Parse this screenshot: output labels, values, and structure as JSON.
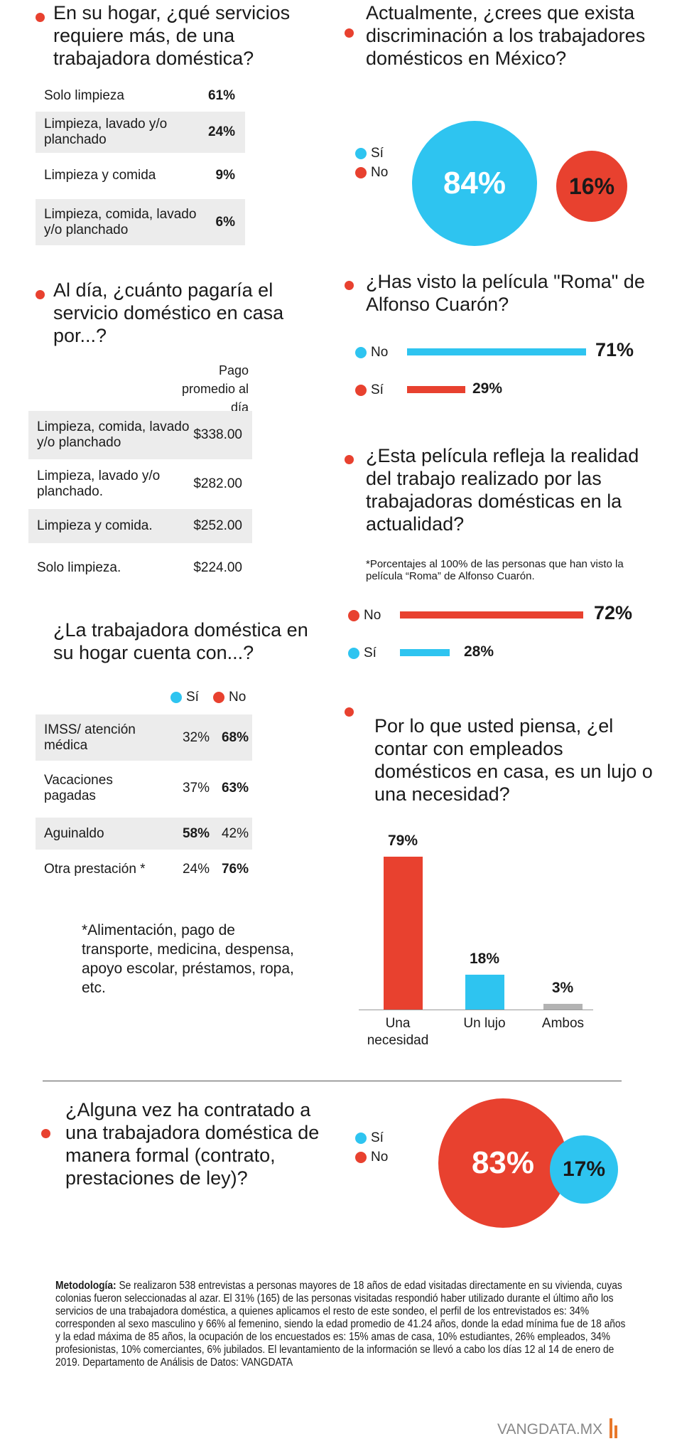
{
  "colors": {
    "red": "#e8412f",
    "blue": "#2ec4f0",
    "gray": "#b3b3b3",
    "row_gray": "#ececec"
  },
  "q1": {
    "title": "En su hogar, ¿qué servicios requiere más, de una trabajadora doméstica?",
    "rows": [
      {
        "label": "Solo limpieza",
        "value": "61%"
      },
      {
        "label": "Limpieza, lavado y/o planchado",
        "value": "24%"
      },
      {
        "label": "Limpieza y comida",
        "value": "9%"
      },
      {
        "label": "Limpieza, comida, lavado y/o planchado",
        "value": "6%"
      }
    ]
  },
  "q2": {
    "title": "Al día, ¿cuánto pagaría el servicio doméstico en casa por...?",
    "column_header": "Pago promedio al día",
    "rows": [
      {
        "label": "Limpieza, comida, lavado y/o planchado",
        "value": "$338.00"
      },
      {
        "label": "Limpieza, lavado y/o planchado.",
        "value": "$282.00"
      },
      {
        "label": "Limpieza y comida.",
        "value": "$252.00"
      },
      {
        "label": "Solo limpieza.",
        "value": "$224.00"
      }
    ]
  },
  "q3": {
    "title": "¿La trabajadora doméstica en su hogar cuenta con...?",
    "legend_si": "Sí",
    "legend_no": "No",
    "rows": [
      {
        "label": "IMSS/ atención médica",
        "si": "32%",
        "no": "68%"
      },
      {
        "label": "Vacaciones pagadas",
        "si": "37%",
        "no": "63%"
      },
      {
        "label": "Aguinaldo",
        "si": "58%",
        "no": "42%"
      },
      {
        "label": "Otra prestación *",
        "si": "24%",
        "no": "76%"
      }
    ],
    "footnote": "*Alimentación, pago de transporte, medicina, despensa, apoyo escolar, préstamos, ropa, etc."
  },
  "q4": {
    "title": "Actualmente, ¿crees que exista discriminación a los trabajadores domésticos en México?",
    "legend_si": "Sí",
    "legend_no": "No",
    "si": "84%",
    "no": "16%"
  },
  "q5": {
    "title": "¿Has visto la película \"Roma\" de Alfonso Cuarón?",
    "no_label": "No",
    "no": "71%",
    "si_label": "Sí",
    "si": "29%"
  },
  "q6": {
    "title": "¿Esta película refleja la realidad del trabajo realizado por las trabajadoras domésticas en la actualidad?",
    "note": "*Porcentajes al 100% de las personas que han visto la película “Roma” de Alfonso Cuarón.",
    "no_label": "No",
    "no": "72%",
    "si_label": "Sí",
    "si": "28%"
  },
  "q7": {
    "title": "Por lo que usted piensa, ¿el contar con empleados domésticos en casa, es un lujo o una necesidad?",
    "bars": [
      {
        "label": "Una necesidad",
        "value": "79%"
      },
      {
        "label": "Un lujo",
        "value": "18%"
      },
      {
        "label": "Ambos",
        "value": "3%"
      }
    ]
  },
  "q8": {
    "title": "¿Alguna vez ha contratado a una trabajadora doméstica de manera formal (contrato, prestaciones de ley)?",
    "legend_si": "Sí",
    "legend_no": "No",
    "no": "83%",
    "si": "17%"
  },
  "methodology": {
    "label": "Metodología:",
    "text": "Se realizaron 538 entrevistas a personas mayores de 18 años de edad visitadas directamente en su vivienda, cuyas colonias fueron seleccionadas al azar. El 31% (165) de las personas visitadas respondió haber utilizado durante el último año los servicios de una trabajadora doméstica, a quienes aplicamos el resto de este sondeo, el perfil de los entrevistados es: 34% corresponden al sexo masculino y 66% al femenino, siendo la edad promedio de 41.24 años, donde la edad mínima fue de 18 años y la edad máxima de 85 años, la ocupación de los encuestados es: 15% amas de casa, 10% estudiantes, 26% empleados, 34% profesionistas, 10% comerciantes, 6% jubilados. El levantamiento de la información se llevó a cabo los días 12 al 14 de enero de 2019. Departamento de Análisis de Datos: VANGDATA"
  },
  "logo": "VANGDATA.MX",
  "chart_data": [
    {
      "type": "pie",
      "title": "Actualmente, ¿crees que exista discriminación a los trabajadores domésticos en México?",
      "categories": [
        "Sí",
        "No"
      ],
      "values": [
        84,
        16
      ]
    },
    {
      "type": "bar",
      "orientation": "horizontal",
      "title": "¿Has visto la película \"Roma\" de Alfonso Cuarón?",
      "categories": [
        "No",
        "Sí"
      ],
      "values": [
        71,
        29
      ]
    },
    {
      "type": "bar",
      "orientation": "horizontal",
      "title": "¿Esta película refleja la realidad del trabajo realizado por las trabajadoras domésticas en la actualidad?",
      "categories": [
        "No",
        "Sí"
      ],
      "values": [
        72,
        28
      ]
    },
    {
      "type": "bar",
      "title": "Por lo que usted piensa, ¿el contar con empleados domésticos en casa, es un lujo o una necesidad?",
      "categories": [
        "Una necesidad",
        "Un lujo",
        "Ambos"
      ],
      "values": [
        79,
        18,
        3
      ]
    },
    {
      "type": "pie",
      "title": "¿Alguna vez ha contratado a una trabajadora doméstica de manera formal (contrato, prestaciones de ley)?",
      "categories": [
        "Sí",
        "No"
      ],
      "values": [
        17,
        83
      ]
    }
  ]
}
